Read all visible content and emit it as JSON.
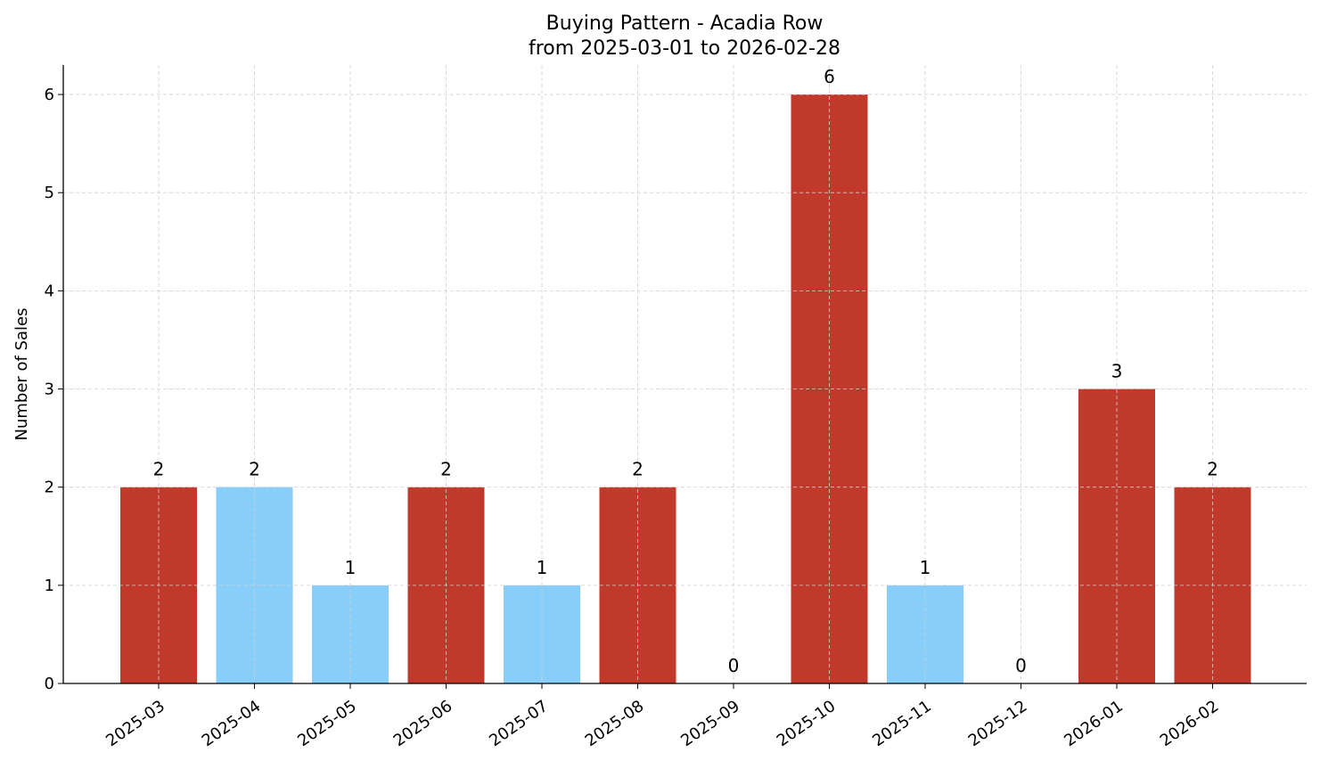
{
  "chart_data": {
    "type": "bar",
    "title": "Buying Pattern - Acadia Row",
    "subtitle": "from 2025-03-01 to 2026-02-28",
    "xlabel": "",
    "ylabel": "Number of Sales",
    "categories": [
      "2025-03",
      "2025-04",
      "2025-05",
      "2025-06",
      "2025-07",
      "2025-08",
      "2025-09",
      "2025-10",
      "2025-11",
      "2025-12",
      "2026-01",
      "2026-02"
    ],
    "values": [
      2,
      2,
      1,
      2,
      1,
      2,
      0,
      6,
      1,
      0,
      3,
      2
    ],
    "bar_colors": [
      "#c0392b",
      "#87cefa",
      "#87cefa",
      "#c0392b",
      "#87cefa",
      "#c0392b",
      "#87cefa",
      "#c0392b",
      "#87cefa",
      "#87cefa",
      "#c0392b",
      "#c0392b"
    ],
    "ylim": [
      0,
      6.3
    ],
    "yticks": [
      0,
      1,
      2,
      3,
      4,
      5,
      6
    ],
    "grid": true,
    "data_labels": true
  }
}
